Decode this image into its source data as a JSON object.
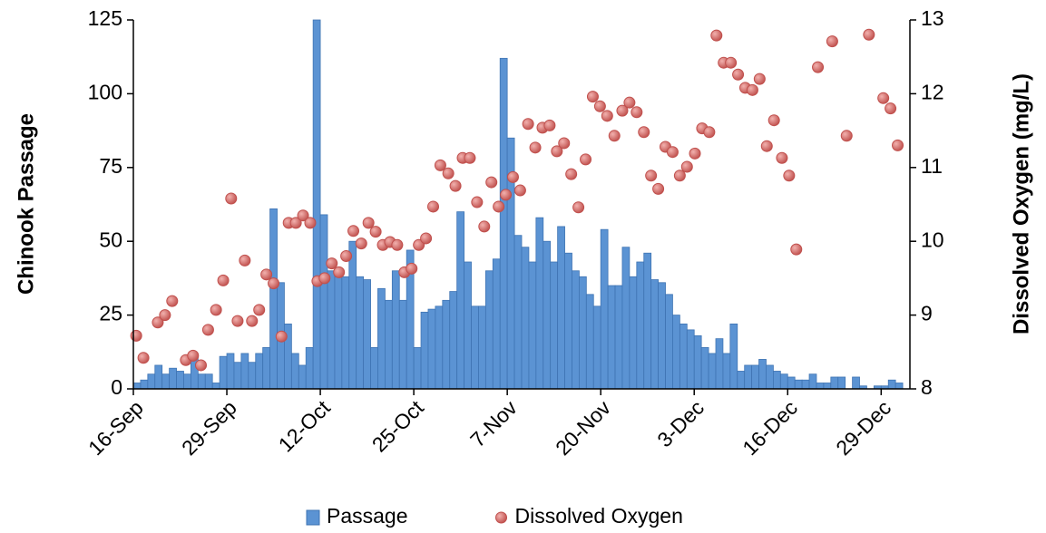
{
  "chart_data": {
    "type": "bar",
    "y_label": "Chinook Passage",
    "y2_label": "Dissolved Oxygen (mg/L)",
    "xlim": [
      0,
      108
    ],
    "xticks": [
      {
        "value": 0,
        "label": "16-Sep"
      },
      {
        "value": 13,
        "label": "29-Sep"
      },
      {
        "value": 26,
        "label": "12-Oct"
      },
      {
        "value": 39,
        "label": "25-Oct"
      },
      {
        "value": 52,
        "label": "7-Nov"
      },
      {
        "value": 65,
        "label": "20-Nov"
      },
      {
        "value": 78,
        "label": "3-Dec"
      },
      {
        "value": 91,
        "label": "16-Dec"
      },
      {
        "value": 104,
        "label": "29-Dec"
      }
    ],
    "ylim": [
      0,
      125
    ],
    "yticks": [
      0,
      25,
      50,
      75,
      100,
      125
    ],
    "y2lim": [
      8,
      13
    ],
    "y2ticks": [
      8,
      9,
      10,
      11,
      12,
      13
    ],
    "legend": "bottom",
    "series": [
      {
        "name": "Passage",
        "type": "bar",
        "color": "#5b93d3",
        "x": [
          0,
          1,
          2,
          3,
          4,
          5,
          6,
          7,
          8,
          9,
          10,
          11,
          12,
          13,
          14,
          15,
          16,
          17,
          18,
          19,
          20,
          21,
          22,
          23,
          24,
          25,
          26,
          27,
          28,
          29,
          30,
          31,
          32,
          33,
          34,
          35,
          36,
          37,
          38,
          39,
          40,
          41,
          42,
          43,
          44,
          45,
          46,
          47,
          48,
          49,
          50,
          51,
          52,
          53,
          54,
          55,
          56,
          57,
          58,
          59,
          60,
          61,
          62,
          63,
          64,
          65,
          66,
          67,
          68,
          69,
          70,
          71,
          72,
          73,
          74,
          75,
          76,
          77,
          78,
          79,
          80,
          81,
          82,
          83,
          84,
          85,
          86,
          87,
          88,
          89,
          90,
          91,
          92,
          93,
          94,
          95,
          96,
          97,
          98,
          99,
          100,
          101,
          102,
          103,
          104,
          105,
          106,
          107
        ],
        "values": [
          2,
          3,
          5,
          8,
          5,
          7,
          6,
          5,
          11,
          5,
          5,
          2,
          11,
          12,
          9,
          12,
          9,
          12,
          14,
          61,
          36,
          22,
          12,
          8,
          14,
          125,
          59,
          40,
          38,
          38,
          50,
          38,
          37,
          14,
          34,
          30,
          40,
          30,
          47,
          14,
          26,
          27,
          28,
          30,
          33,
          60,
          43,
          28,
          28,
          40,
          44,
          112,
          85,
          52,
          48,
          43,
          58,
          50,
          43,
          55,
          46,
          40,
          38,
          32,
          28,
          54,
          35,
          35,
          48,
          38,
          43,
          46,
          37,
          36,
          32,
          25,
          22,
          20,
          18,
          14,
          12,
          17,
          12,
          22,
          6,
          8,
          8,
          10,
          8,
          6,
          5,
          4,
          3,
          3,
          5,
          2,
          2,
          4,
          4,
          0,
          4,
          1,
          0,
          1,
          1,
          3,
          2,
          0
        ]
      },
      {
        "name": "Dissolved Oxygen",
        "type": "scatter",
        "axis": "y2",
        "color": "#c0504d",
        "x": [
          0.4,
          1.4,
          3.4,
          4.4,
          5.4,
          7.3,
          8.3,
          9.4,
          10.4,
          11.5,
          12.5,
          13.6,
          14.5,
          15.5,
          16.5,
          17.5,
          18.5,
          19.5,
          20.6,
          21.6,
          22.6,
          23.6,
          24.6,
          25.6,
          26.6,
          27.6,
          28.6,
          29.6,
          30.6,
          31.7,
          32.7,
          33.7,
          34.7,
          35.7,
          36.7,
          37.7,
          38.7,
          39.7,
          40.7,
          41.7,
          42.7,
          43.8,
          44.8,
          45.8,
          46.8,
          47.8,
          48.8,
          49.8,
          50.8,
          51.8,
          52.8,
          53.8,
          54.9,
          55.9,
          56.9,
          57.9,
          58.9,
          59.9,
          60.9,
          61.9,
          62.9,
          63.9,
          64.9,
          65.9,
          66.9,
          68,
          69,
          70,
          71,
          72,
          73,
          74,
          75,
          76,
          77,
          78.1,
          79.1,
          80.1,
          81.1,
          82.1,
          83.1,
          84.1,
          85.1,
          86.1,
          87.1,
          88.1,
          89.1,
          90.2,
          91.2,
          92.2,
          95.2,
          97.2,
          99.2,
          102.3,
          104.3,
          105.3,
          106.3
        ],
        "values": [
          8.72,
          8.42,
          8.9,
          9.0,
          9.19,
          8.39,
          8.45,
          8.32,
          8.8,
          9.07,
          9.47,
          10.58,
          8.92,
          9.74,
          8.92,
          9.07,
          9.55,
          9.43,
          8.71,
          10.25,
          10.25,
          10.35,
          10.25,
          9.46,
          9.5,
          9.7,
          9.58,
          9.8,
          10.14,
          9.97,
          10.25,
          10.13,
          9.95,
          9.99,
          9.95,
          9.58,
          9.63,
          9.95,
          10.04,
          10.47,
          11.03,
          10.92,
          10.75,
          11.13,
          11.13,
          10.53,
          10.2,
          10.8,
          10.47,
          10.63,
          10.87,
          10.69,
          11.59,
          11.27,
          11.54,
          11.57,
          11.22,
          11.33,
          10.91,
          10.46,
          11.11,
          11.96,
          11.83,
          11.7,
          11.43,
          11.77,
          11.88,
          11.75,
          11.48,
          10.89,
          10.71,
          11.28,
          11.21,
          10.89,
          11.01,
          11.19,
          11.53,
          11.48,
          12.79,
          12.42,
          12.42,
          12.26,
          12.08,
          12.05,
          12.2,
          11.29,
          11.64,
          11.13,
          10.89,
          9.89,
          12.36,
          12.71,
          11.43,
          12.8,
          11.94,
          11.8,
          11.3
        ]
      }
    ]
  }
}
